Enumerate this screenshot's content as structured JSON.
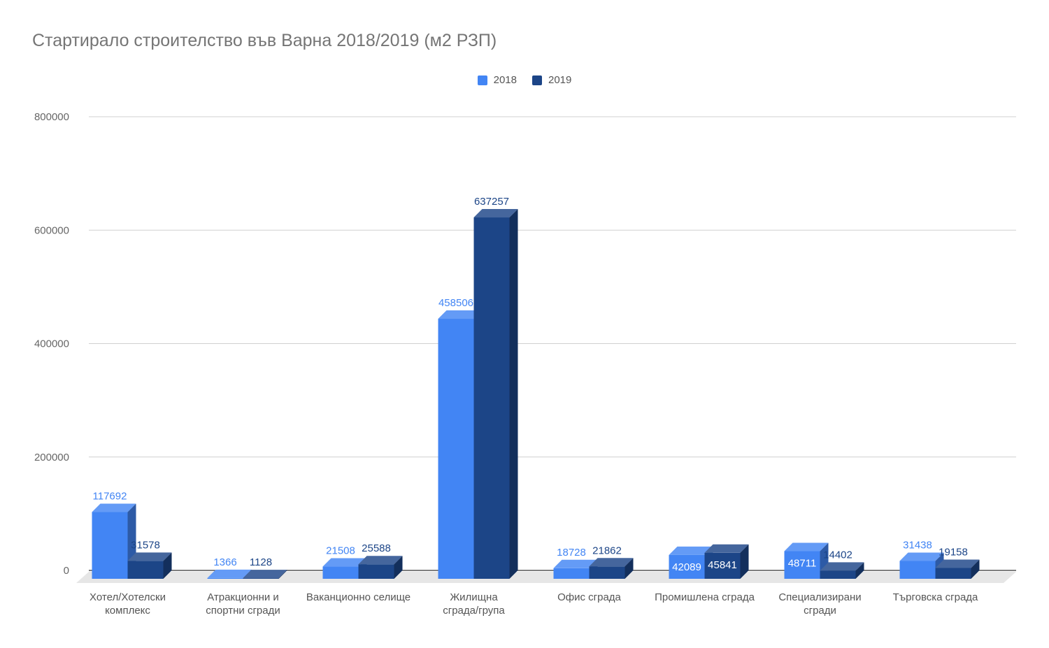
{
  "chart_data": {
    "type": "bar",
    "title": "Стартирало строителство във Варна 2018/2019 (м2 РЗП)",
    "categories": [
      [
        "Хотел/Хотелски",
        "комплекс"
      ],
      [
        "Атракционни и",
        "спортни сгради"
      ],
      [
        "Ваканционно селище"
      ],
      [
        "Жилищна",
        "сграда/група"
      ],
      [
        "Офис сграда"
      ],
      [
        "Промишлена сграда"
      ],
      [
        "Специализирани",
        "сгради"
      ],
      [
        "Търговска сграда"
      ]
    ],
    "series": [
      {
        "name": "2018",
        "color": "#4285f4",
        "values": [
          117692,
          1366,
          21508,
          458506,
          18728,
          42089,
          48711,
          31438
        ]
      },
      {
        "name": "2019",
        "color": "#1c4587",
        "values": [
          31578,
          1128,
          25588,
          637257,
          21862,
          45841,
          14402,
          19158
        ]
      }
    ],
    "ylim": [
      0,
      800000
    ],
    "yticks": [
      "0",
      "200000",
      "400000",
      "600000",
      "800000"
    ],
    "grid": true,
    "legend_position": "top-center",
    "xlabel": "",
    "ylabel": ""
  }
}
